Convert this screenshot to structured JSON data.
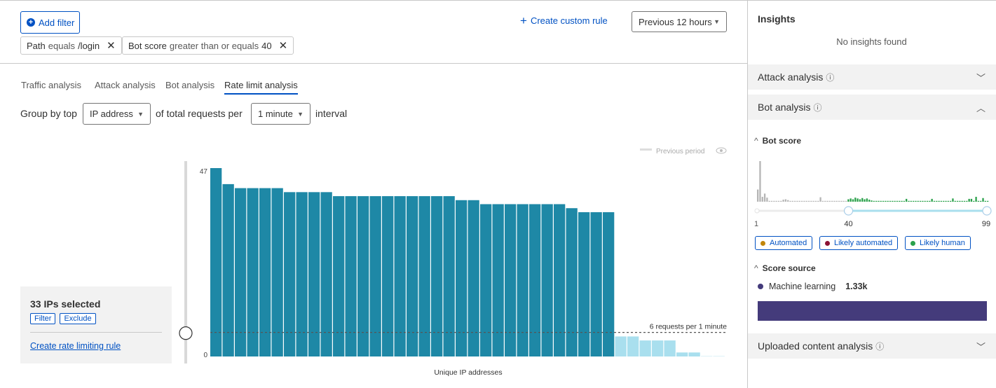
{
  "toolbar": {
    "add_filter": "Add filter",
    "create_custom_rule": "Create custom rule",
    "time_range": "Previous 12 hours"
  },
  "filters": [
    {
      "field": "Path",
      "operator": "equals",
      "value": "/login"
    },
    {
      "field": "Bot score",
      "operator": "greater than or equals",
      "value": "40"
    }
  ],
  "tabs": [
    {
      "label": "Traffic analysis"
    },
    {
      "label": "Attack analysis"
    },
    {
      "label": "Bot analysis"
    },
    {
      "label": "Rate limit analysis",
      "active": true
    }
  ],
  "group_by": {
    "prefix": "Group by top",
    "group": "IP address",
    "middle": "of total requests per",
    "interval": "1 minute",
    "suffix": "interval"
  },
  "selection": {
    "title": "33 IPs selected",
    "filter": "Filter",
    "exclude": "Exclude",
    "create_rule": "Create rate limiting rule"
  },
  "chart_data": {
    "type": "bar",
    "xlabel": "Unique IP addresses",
    "ylim": [
      0,
      47
    ],
    "yticks": [
      "0",
      "47"
    ],
    "legend": {
      "label": "Previous period",
      "placement": "top-right"
    },
    "threshold": {
      "value": 6,
      "label": "6 requests per 1 minute"
    },
    "selected_values": [
      47,
      43,
      42,
      42,
      42,
      42,
      41,
      41,
      41,
      41,
      40,
      40,
      40,
      40,
      40,
      40,
      40,
      40,
      40,
      40,
      39,
      39,
      38,
      38,
      38,
      38,
      38,
      38,
      38,
      37,
      36,
      36,
      36
    ],
    "unselected_values": [
      5,
      5,
      4,
      4,
      4,
      1,
      1,
      0,
      0
    ],
    "colors": {
      "selected": "#1e88a6",
      "unselected": "#a9dfee",
      "threshold": "#555555"
    }
  },
  "insights": {
    "title": "Insights",
    "empty": "No insights found",
    "sections": {
      "attack": "Attack analysis",
      "bot": "Bot analysis",
      "uploaded": "Uploaded content analysis"
    },
    "bot_score": {
      "title": "Bot score",
      "min_label": "1",
      "threshold_label": "40",
      "max_label": "99",
      "range": [
        40,
        99
      ],
      "histogram": [
        30,
        100,
        12,
        20,
        10,
        2,
        2,
        2,
        2,
        2,
        2,
        5,
        6,
        4,
        2,
        2,
        2,
        2,
        2,
        2,
        2,
        2,
        2,
        2,
        2,
        2,
        2,
        11,
        2,
        2,
        2,
        2,
        2,
        2,
        2,
        2,
        2,
        2,
        2,
        6,
        8,
        6,
        10,
        8,
        6,
        9,
        6,
        8,
        5,
        3,
        2,
        2,
        2,
        2,
        2,
        2,
        2,
        2,
        2,
        2,
        2,
        2,
        2,
        2,
        7,
        2,
        2,
        2,
        2,
        2,
        2,
        2,
        2,
        2,
        2,
        7,
        2,
        2,
        2,
        2,
        2,
        2,
        2,
        2,
        8,
        2,
        2,
        2,
        2,
        2,
        2,
        7,
        7,
        2,
        12,
        2,
        2,
        9,
        2,
        2
      ],
      "legend": [
        {
          "label": "Automated",
          "color": "#c2860a"
        },
        {
          "label": "Likely automated",
          "color": "#8b1234"
        },
        {
          "label": "Likely human",
          "color": "#2ba14b"
        }
      ]
    },
    "score_source": {
      "title": "Score source",
      "items": [
        {
          "label": "Machine learning",
          "value": "1.33k",
          "color": "#443b7b"
        }
      ]
    }
  }
}
